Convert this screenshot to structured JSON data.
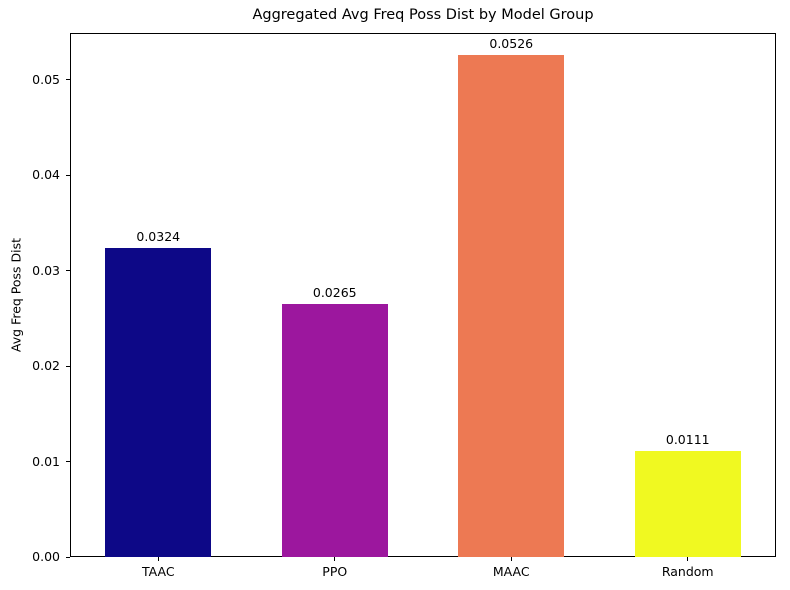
{
  "chart_data": {
    "type": "bar",
    "title": "Aggregated Avg Freq Poss Dist by Model Group",
    "xlabel": "",
    "ylabel": "Avg Freq Poss Dist",
    "categories": [
      "TAAC",
      "PPO",
      "MAAC",
      "Random"
    ],
    "values": [
      0.0324,
      0.0265,
      0.0526,
      0.0111
    ],
    "value_labels": [
      "0.0324",
      "0.0265",
      "0.0526",
      "0.0111"
    ],
    "bar_colors": [
      "#0d0887",
      "#9c179e",
      "#ed7953",
      "#f0f921"
    ],
    "ylim": [
      0,
      0.0549
    ],
    "yticks": [
      0,
      0.01,
      0.02,
      0.03,
      0.04,
      0.05
    ],
    "ytick_labels": [
      "0.00",
      "0.01",
      "0.02",
      "0.03",
      "0.04",
      "0.05"
    ],
    "grid": false,
    "legend": null,
    "background_color": "#ffffff",
    "axis_color": "#000000"
  }
}
